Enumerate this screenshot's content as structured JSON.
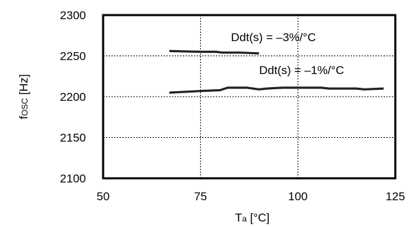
{
  "chart_data": {
    "type": "line",
    "xlim": [
      50,
      125
    ],
    "ylim": [
      2100,
      2300
    ],
    "x_ticks": [
      "50",
      "75",
      "100",
      "125"
    ],
    "y_ticks": [
      "2100",
      "2150",
      "2200",
      "2250",
      "2300"
    ],
    "xlabel": {
      "main": "T",
      "sub": "a",
      "rest": " [°C]"
    },
    "ylabel": {
      "main": "f",
      "sub": "OSC",
      "rest": " [Hz]"
    },
    "grid": true,
    "series": [
      {
        "name": "Ddt(s) = –3%/°C",
        "color": "#222222",
        "x": [
          67,
          75,
          79,
          80.5,
          85,
          90
        ],
        "y": [
          2256,
          2255,
          2255,
          2254,
          2254,
          2253
        ]
      },
      {
        "name": "Ddt(s) = –1%/°C",
        "color": "#222222",
        "x": [
          67,
          75,
          80,
          82,
          87,
          90,
          92,
          96,
          100,
          104,
          106,
          108,
          112,
          115,
          117,
          122
        ],
        "y": [
          2205,
          2207,
          2208,
          2211,
          2211,
          2209,
          2210,
          2211,
          2211,
          2211,
          2211,
          2210,
          2210,
          2210,
          2209,
          2210
        ]
      }
    ]
  }
}
